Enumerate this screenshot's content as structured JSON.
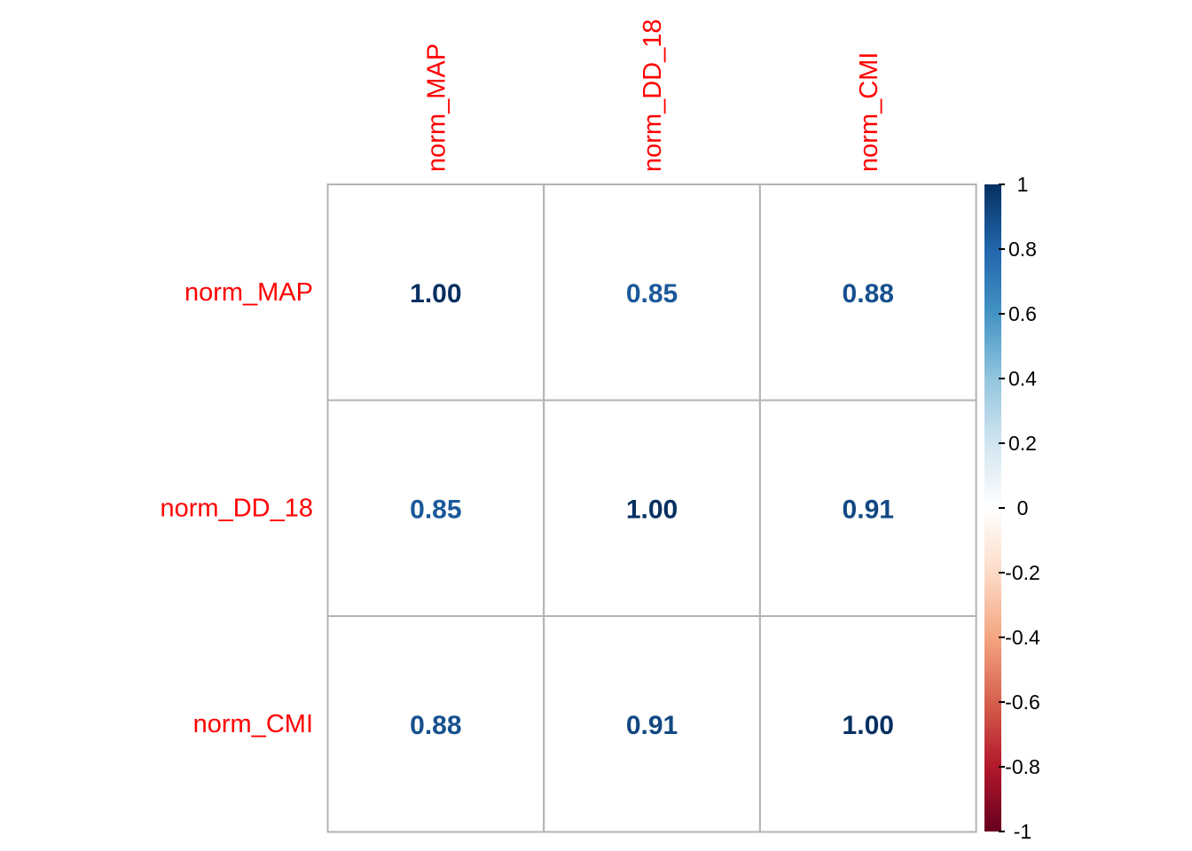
{
  "chart_data": {
    "type": "heatmap",
    "variables": [
      "norm_MAP",
      "norm_DD_18",
      "norm_CMI"
    ],
    "matrix": [
      [
        1.0,
        0.85,
        0.88
      ],
      [
        0.85,
        1.0,
        0.91
      ],
      [
        0.88,
        0.91,
        1.0
      ]
    ],
    "cell_labels": [
      [
        "1.00",
        "0.85",
        "0.88"
      ],
      [
        "0.85",
        "1.00",
        "0.91"
      ],
      [
        "0.88",
        "0.91",
        "1.00"
      ]
    ],
    "colorbar": {
      "range": [
        -1,
        1
      ],
      "ticks": [
        "1",
        "0.8",
        "0.6",
        "0.4",
        "0.2",
        "0",
        "-0.2",
        "-0.4",
        "-0.6",
        "-0.8",
        "-1"
      ]
    },
    "label_color": "#ff0000",
    "grid_color": "#b3b3b3",
    "palette": [
      "#67001F",
      "#B2182B",
      "#D6604D",
      "#F4A582",
      "#FDDBC7",
      "#FFFFFF",
      "#D1E5F0",
      "#92C5DE",
      "#4393C3",
      "#2166AC",
      "#053061"
    ]
  }
}
